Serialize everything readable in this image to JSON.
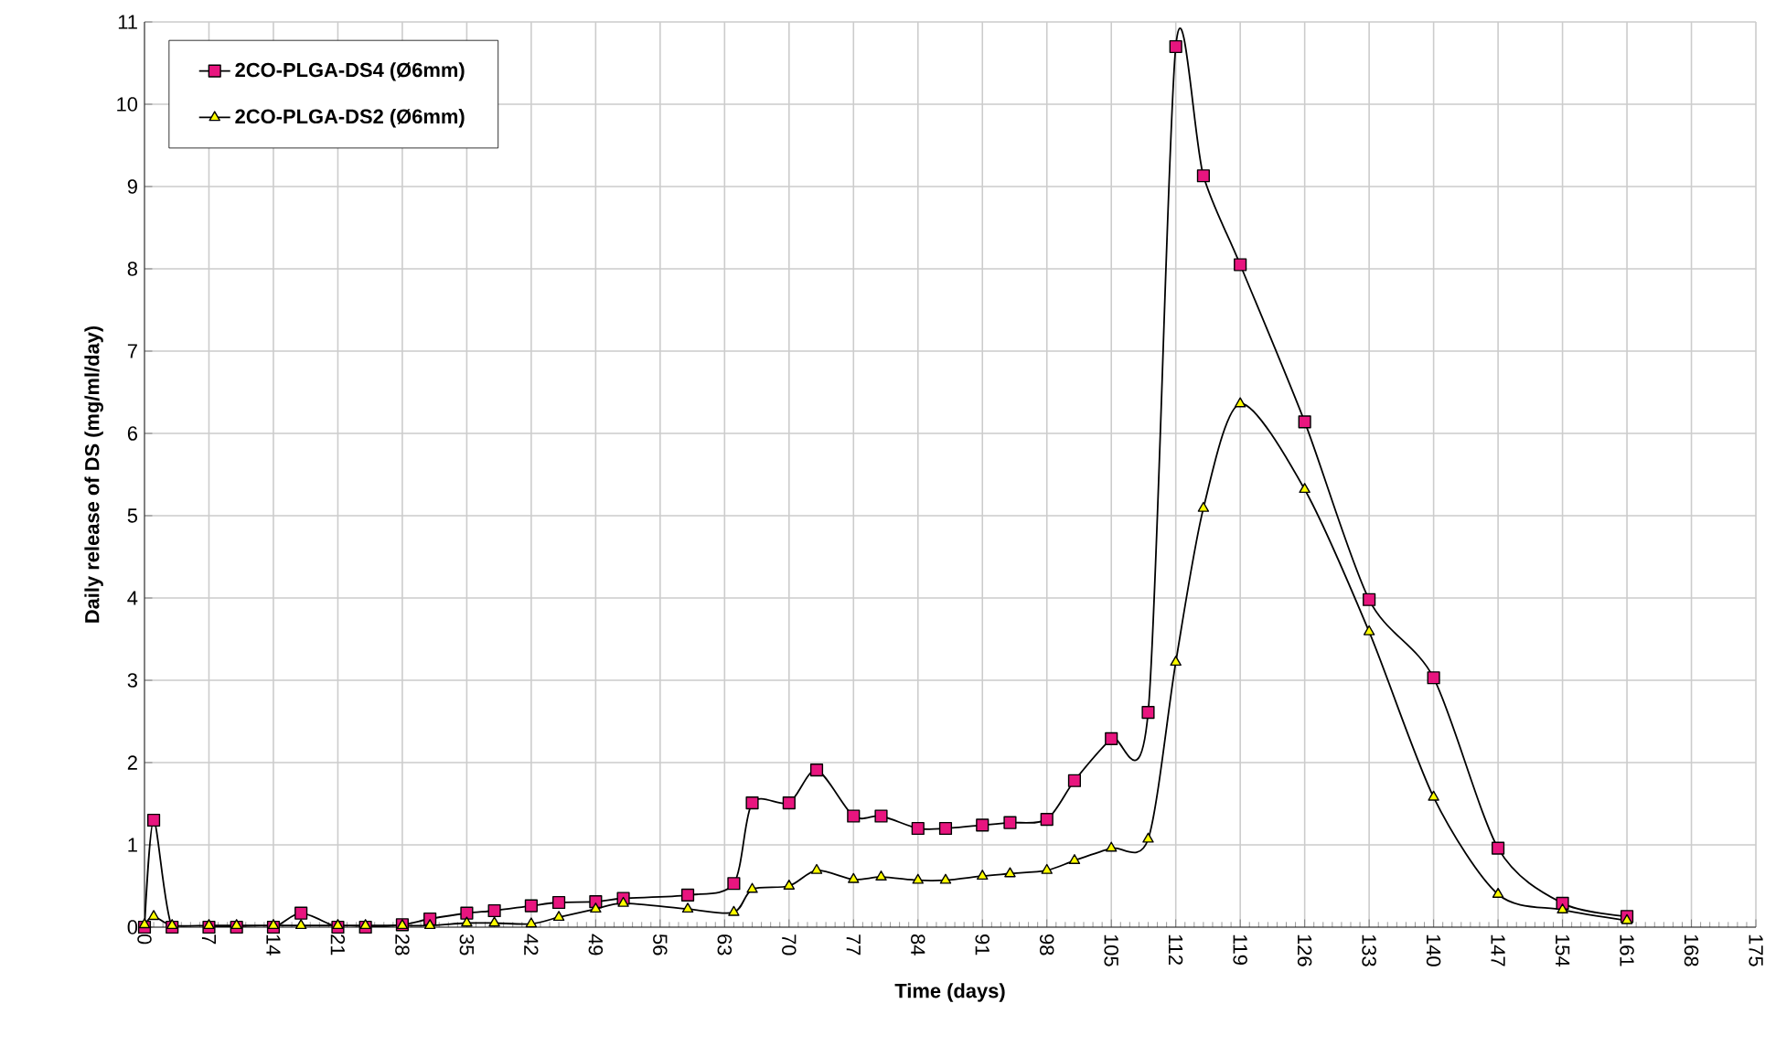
{
  "chart_data": {
    "type": "line",
    "xlabel": "Time (days)",
    "ylabel": "Daily release of DS (mg/ml/day)",
    "xlim": [
      0,
      175
    ],
    "xticks": [
      0,
      7,
      14,
      21,
      28,
      35,
      42,
      49,
      56,
      63,
      70,
      77,
      84,
      91,
      98,
      105,
      112,
      119,
      126,
      133,
      140,
      147,
      154,
      161,
      168,
      175
    ],
    "ylim": [
      0,
      11
    ],
    "yticks": [
      0,
      1,
      2,
      3,
      4,
      5,
      6,
      7,
      8,
      9,
      10,
      11
    ],
    "grid": true,
    "legend": "top left",
    "series": [
      {
        "name": "2CO-PLGA-DS4 (Ø6mm)",
        "color": "#e8157f",
        "marker": "square",
        "x": [
          0,
          1,
          3,
          7,
          10,
          14,
          17,
          21,
          24,
          28,
          31,
          35,
          38,
          42,
          45,
          49,
          52,
          59,
          64,
          66,
          70,
          73,
          77,
          80,
          84,
          87,
          91,
          94,
          98,
          101,
          105,
          109,
          112,
          115,
          119,
          126,
          133,
          140,
          147,
          154,
          161
        ],
        "values": [
          0,
          1.3,
          0,
          0,
          0,
          0,
          0.17,
          0,
          0,
          0.03,
          0.1,
          0.17,
          0.2,
          0.26,
          0.3,
          0.31,
          0.35,
          0.39,
          0.53,
          1.51,
          1.51,
          1.91,
          1.35,
          1.35,
          1.2,
          1.2,
          1.24,
          1.27,
          1.31,
          1.78,
          2.29,
          2.61,
          10.7,
          9.13,
          8.05,
          6.14,
          3.98,
          3.03,
          0.96,
          0.29,
          0.13
        ]
      },
      {
        "name": "2CO-PLGA-DS2 (Ø6mm)",
        "color": "#ffff00",
        "marker": "triangle",
        "x": [
          0,
          1,
          3,
          7,
          10,
          14,
          17,
          21,
          24,
          28,
          31,
          35,
          38,
          42,
          45,
          49,
          52,
          59,
          64,
          66,
          70,
          73,
          77,
          80,
          84,
          87,
          91,
          94,
          98,
          101,
          105,
          109,
          112,
          115,
          119,
          126,
          133,
          140,
          147,
          154,
          161
        ],
        "values": [
          0.03,
          0.13,
          0.02,
          0.02,
          0.02,
          0.02,
          0.02,
          0.02,
          0.02,
          0.02,
          0.02,
          0.05,
          0.05,
          0.04,
          0.12,
          0.22,
          0.29,
          0.22,
          0.18,
          0.46,
          0.5,
          0.69,
          0.58,
          0.61,
          0.57,
          0.57,
          0.62,
          0.65,
          0.69,
          0.81,
          0.96,
          1.07,
          3.22,
          5.09,
          6.36,
          5.32,
          3.59,
          1.58,
          0.4,
          0.21,
          0.08
        ]
      }
    ]
  }
}
